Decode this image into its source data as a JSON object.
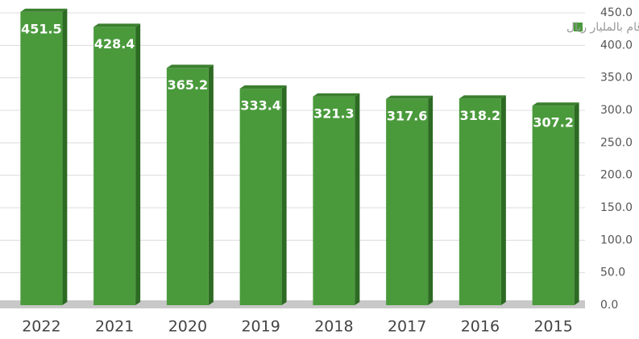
{
  "chart_data": {
    "type": "bar",
    "legend_label": "الأرقام بالمليار ريال",
    "categories": [
      "2022",
      "2021",
      "2020",
      "2019",
      "2018",
      "2017",
      "2016",
      "2015"
    ],
    "values": [
      451.5,
      428.4,
      365.2,
      333.4,
      321.3,
      317.6,
      318.2,
      307.2
    ],
    "color": "#4a9a3c",
    "ylim": [
      0,
      450
    ],
    "yticks": [
      {
        "value": 0,
        "label": "0.0"
      },
      {
        "value": 50,
        "label": "50.0"
      },
      {
        "value": 100,
        "label": "100.0"
      },
      {
        "value": 150,
        "label": "150.0"
      },
      {
        "value": 200,
        "label": "200.0"
      },
      {
        "value": 250,
        "label": "250.0"
      },
      {
        "value": 300,
        "label": "300.0"
      },
      {
        "value": 350,
        "label": "350.0"
      },
      {
        "value": 400,
        "label": "400.0"
      },
      {
        "value": 450,
        "label": "450.0"
      }
    ],
    "grid": true
  }
}
